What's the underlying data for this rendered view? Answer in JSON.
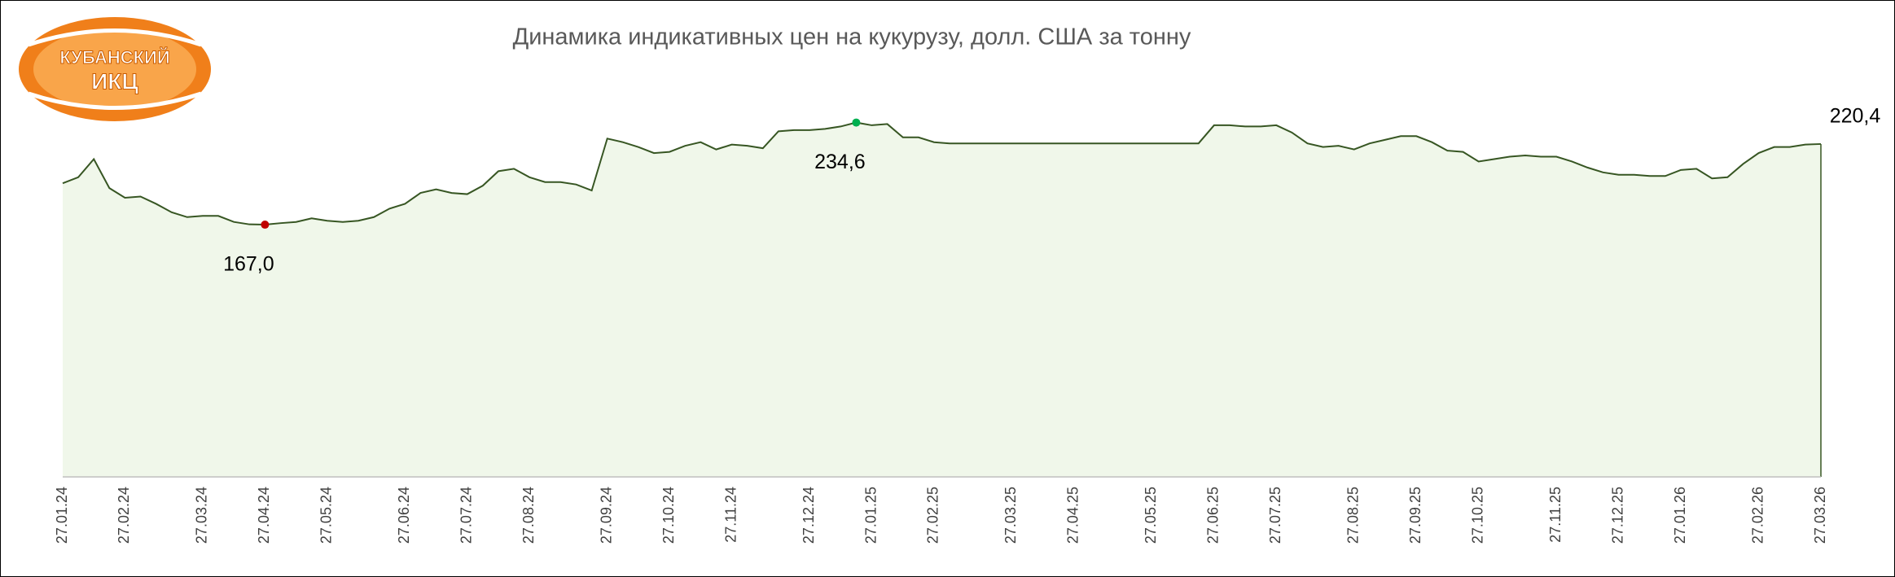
{
  "logo": {
    "line1": "КУБАНСКИЙ",
    "line2": "ИКЦ"
  },
  "chart_data": {
    "type": "area",
    "title": "Динамика индикативных цен на кукурузу, долл. США за тонну",
    "categories": [
      "27.01.24",
      null,
      null,
      null,
      "27.02.24",
      null,
      null,
      null,
      null,
      "27.03.24",
      null,
      null,
      null,
      "27.04.24",
      null,
      null,
      null,
      "27.05.24",
      null,
      null,
      null,
      null,
      "27.06.24",
      null,
      null,
      null,
      "27.07.24",
      null,
      null,
      null,
      "27.08.24",
      null,
      null,
      null,
      null,
      "27.09.24",
      null,
      null,
      null,
      "27.10.24",
      null,
      null,
      null,
      "27.11.24",
      null,
      null,
      null,
      null,
      "27.12.24",
      null,
      null,
      null,
      "27.01.25",
      null,
      null,
      null,
      "27.02.25",
      null,
      null,
      null,
      null,
      "27.03.25",
      null,
      null,
      null,
      "27.04.25",
      null,
      null,
      null,
      null,
      "27.05.25",
      null,
      null,
      null,
      "27.06.25",
      null,
      null,
      null,
      "27.07.25",
      null,
      null,
      null,
      null,
      "27.08.25",
      null,
      null,
      null,
      "27.09.25",
      null,
      null,
      null,
      "27.10.25",
      null,
      null,
      null,
      null,
      "27.11.25",
      null,
      null,
      null,
      "27.12.25",
      null,
      null,
      null,
      "27.01.26",
      null,
      null,
      null,
      null,
      "27.02.26",
      null,
      null,
      null,
      "27.03.26"
    ],
    "values": [
      194.4,
      198.4,
      210.4,
      191.2,
      184.8,
      185.6,
      180.8,
      175.2,
      172,
      172.8,
      172.8,
      168.8,
      167.2,
      167,
      168,
      168.8,
      171.2,
      169.6,
      168.8,
      169.6,
      172,
      177.6,
      180.8,
      188,
      190.4,
      188,
      187.2,
      192.8,
      202.4,
      204,
      198.4,
      195.2,
      195.2,
      193.6,
      189.6,
      224,
      221.6,
      218.4,
      214.4,
      215.2,
      219.2,
      221.6,
      216.8,
      220,
      219.2,
      217.6,
      228.8,
      229.6,
      229.6,
      230.4,
      232,
      234.6,
      232.8,
      233.6,
      224.8,
      224.8,
      221.6,
      220.8,
      220.8,
      220.8,
      220.8,
      220.8,
      220.8,
      220.8,
      220.8,
      220.8,
      220.8,
      220.8,
      220.8,
      220.8,
      220.8,
      220.8,
      220.8,
      220.8,
      232.8,
      232.8,
      232,
      232,
      232.8,
      228,
      220.8,
      218.4,
      219.2,
      216.8,
      220.8,
      223.2,
      225.6,
      225.6,
      221.6,
      216,
      215.2,
      208.8,
      210.4,
      212,
      212.8,
      212,
      212,
      208.8,
      204.8,
      201.6,
      200,
      200,
      199.2,
      199.2,
      203.2,
      204,
      197.6,
      198.4,
      207.2,
      214.4,
      218.4,
      218.4,
      220,
      220.4
    ],
    "value_labels": [
      null,
      null,
      null,
      null,
      null,
      null,
      null,
      null,
      null,
      null,
      null,
      null,
      null,
      "167,0",
      null,
      null,
      null,
      null,
      null,
      null,
      null,
      null,
      null,
      null,
      null,
      null,
      null,
      null,
      null,
      null,
      null,
      null,
      null,
      null,
      null,
      null,
      null,
      null,
      null,
      null,
      null,
      null,
      null,
      null,
      null,
      null,
      null,
      null,
      null,
      null,
      null,
      "234,6",
      null,
      null,
      null,
      null,
      null,
      null,
      null,
      null,
      null,
      null,
      null,
      null,
      null,
      null,
      null,
      null,
      null,
      null,
      null,
      null,
      null,
      null,
      null,
      null,
      null,
      null,
      null,
      null,
      null,
      null,
      null,
      null,
      null,
      null,
      null,
      null,
      null,
      null,
      null,
      null,
      null,
      null,
      null,
      null,
      null,
      null,
      null,
      null,
      null,
      null,
      null,
      null,
      null,
      null,
      null,
      null,
      null,
      null,
      null,
      null,
      null,
      "220,4"
    ],
    "color": "#375623",
    "fill": "#f0f7ea",
    "min_color": "#c00000",
    "max_color": "#00b050",
    "ylim": [
      0,
      250
    ]
  }
}
